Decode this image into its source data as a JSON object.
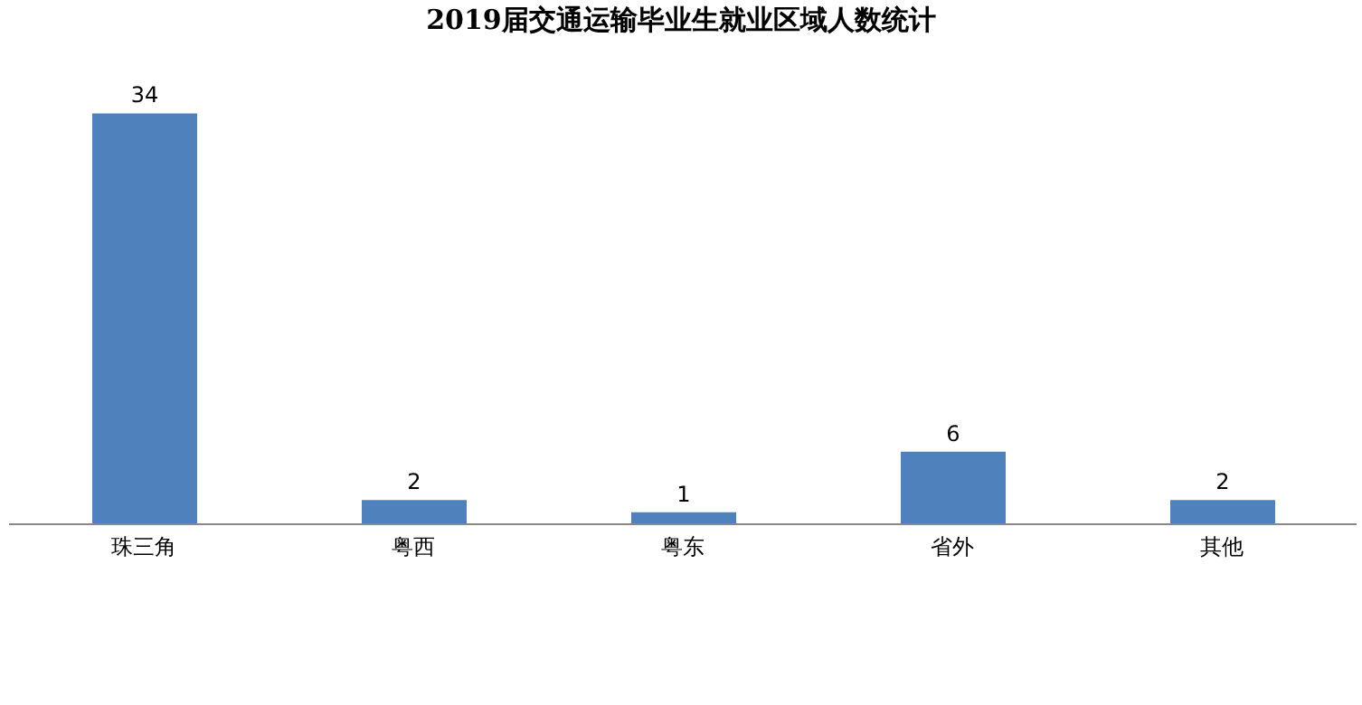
{
  "chart_data": {
    "type": "bar",
    "title": "2019届交通运输毕业生就业区域人数统计",
    "categories": [
      "珠三角",
      "粤西",
      "粤东",
      "省外",
      "其他"
    ],
    "values": [
      34,
      2,
      1,
      6,
      2
    ],
    "color": "#4f81bd",
    "data_labels": true,
    "grid": false,
    "legend": false
  }
}
